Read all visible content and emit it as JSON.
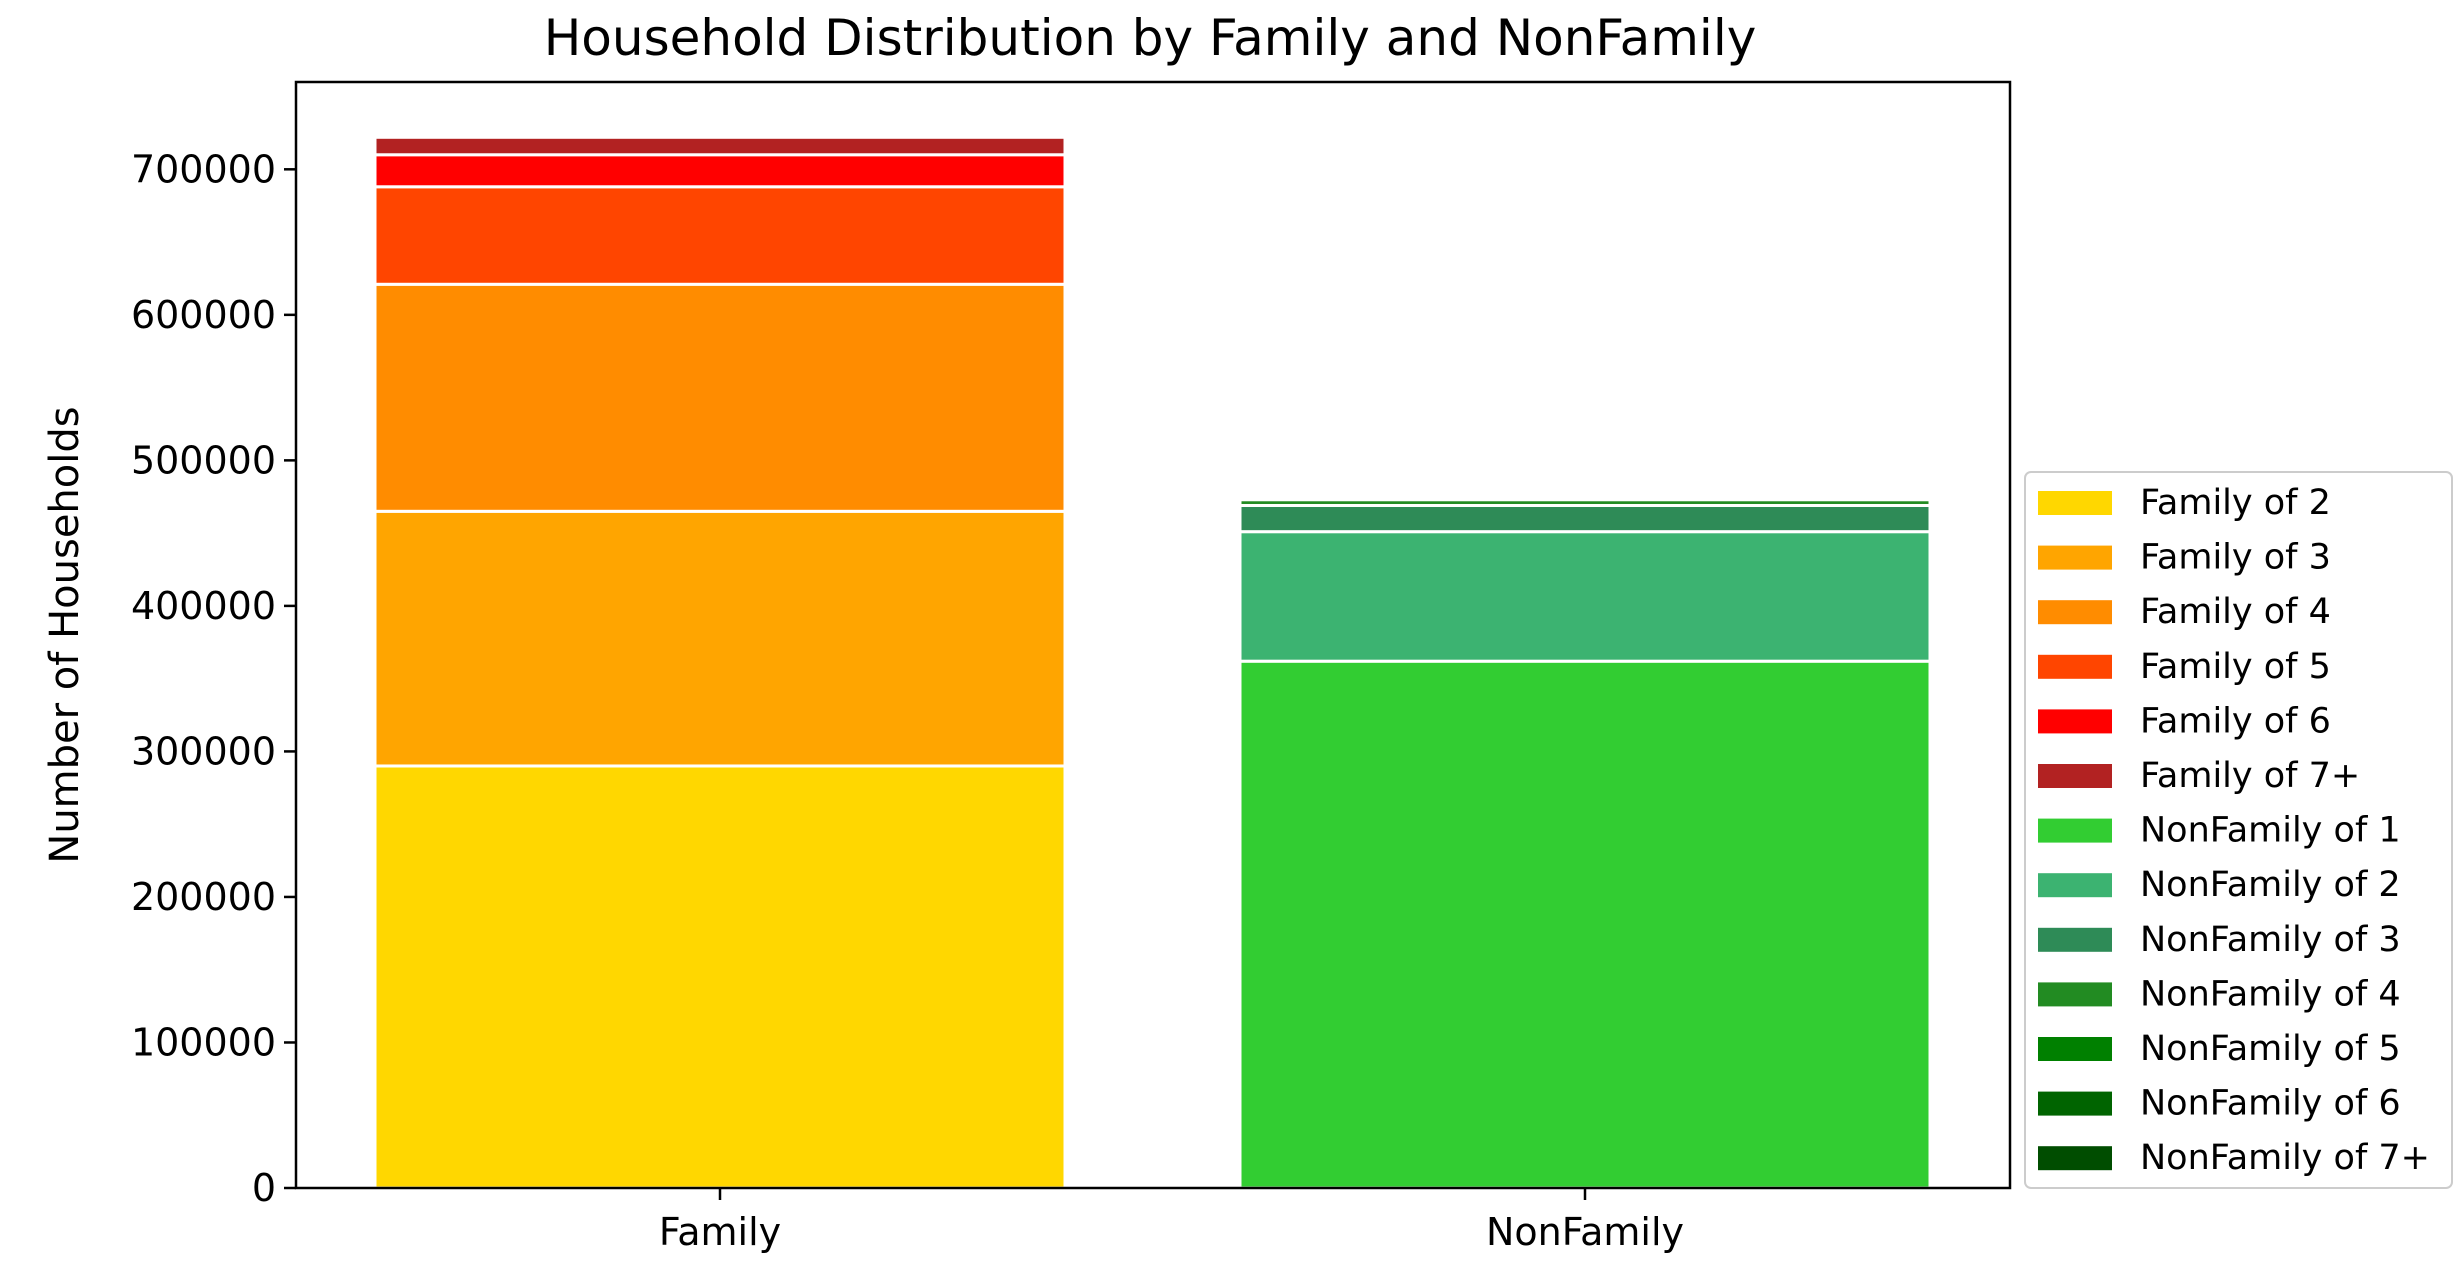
{
  "chart_data": {
    "type": "bar",
    "stacked": true,
    "title": "Household Distribution by Family and NonFamily",
    "xlabel": "",
    "ylabel": "Number of Households",
    "categories": [
      "Family",
      "NonFamily"
    ],
    "ylim": [
      0,
      760000
    ],
    "yticks": [
      0,
      100000,
      200000,
      300000,
      400000,
      500000,
      600000,
      700000
    ],
    "ytick_labels": [
      "0",
      "100000",
      "200000",
      "300000",
      "400000",
      "500000",
      "600000",
      "700000"
    ],
    "grid": false,
    "legend_position": "lower-right-outside",
    "series": [
      {
        "name": "Family of 2",
        "color": "#FFD700",
        "values": [
          290000,
          0
        ]
      },
      {
        "name": "Family of 3",
        "color": "#FFA500",
        "values": [
          175000,
          0
        ]
      },
      {
        "name": "Family of 4",
        "color": "#FF8C00",
        "values": [
          156000,
          0
        ]
      },
      {
        "name": "Family of 5",
        "color": "#FF4500",
        "values": [
          67000,
          0
        ]
      },
      {
        "name": "Family of 6",
        "color": "#FF0000",
        "values": [
          22000,
          0
        ]
      },
      {
        "name": "Family of 7+",
        "color": "#B22222",
        "values": [
          12000,
          0
        ]
      },
      {
        "name": "NonFamily of 1",
        "color": "#32CD32",
        "values": [
          0,
          362000
        ]
      },
      {
        "name": "NonFamily of 2",
        "color": "#3CB371",
        "values": [
          0,
          89000
        ]
      },
      {
        "name": "NonFamily of 3",
        "color": "#2E8B57",
        "values": [
          0,
          18000
        ]
      },
      {
        "name": "NonFamily of 4",
        "color": "#228B22",
        "values": [
          0,
          4000
        ]
      },
      {
        "name": "NonFamily of 5",
        "color": "#008000",
        "values": [
          0,
          1500
        ]
      },
      {
        "name": "NonFamily of 6",
        "color": "#006400",
        "values": [
          0,
          600
        ]
      },
      {
        "name": "NonFamily of 7+",
        "color": "#004D00",
        "values": [
          0,
          400
        ]
      }
    ]
  }
}
